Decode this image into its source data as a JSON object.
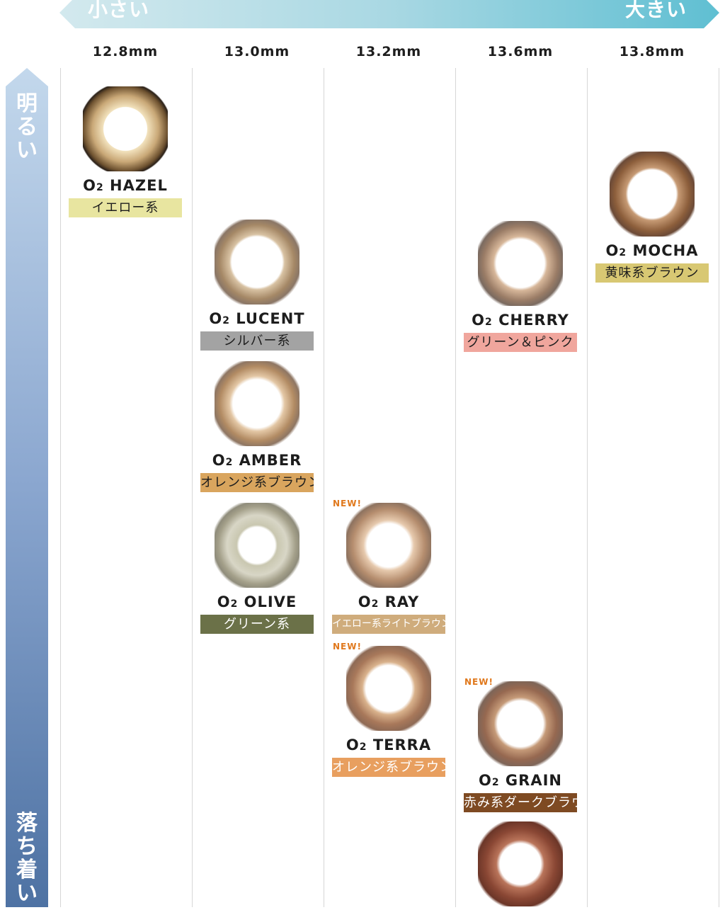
{
  "header": {
    "left_label": "小さい",
    "right_label": "大きい"
  },
  "side": {
    "top_label": "明るい",
    "bottom_label": "落ち着い"
  },
  "columns": [
    "12.8mm",
    "13.0mm",
    "13.2mm",
    "13.6mm",
    "13.8mm"
  ],
  "products": [
    {
      "name": "O",
      "sub": "2",
      "rest": " HAZEL",
      "tag": "イエロー系",
      "tag_color": "#e8e5a0",
      "light": false,
      "new": ""
    },
    {
      "name": "O",
      "sub": "2",
      "rest": " MOCHA",
      "tag": "黄味系ブラウン",
      "tag_color": "#d8c873",
      "light": false,
      "new": ""
    },
    {
      "name": "O",
      "sub": "2",
      "rest": " LUCENT",
      "tag": "シルバー系",
      "tag_color": "#a3a3a3",
      "light": false,
      "new": ""
    },
    {
      "name": "O",
      "sub": "2",
      "rest": " CHERRY",
      "tag": "グリーン＆ピンク",
      "tag_color": "#f0a69d",
      "light": false,
      "new": ""
    },
    {
      "name": "O",
      "sub": "2",
      "rest": " AMBER",
      "tag": "オレンジ系ブラウン",
      "tag_color": "#d9a55e",
      "light": false,
      "new": ""
    },
    {
      "name": "O",
      "sub": "2",
      "rest": " OLIVE",
      "tag": "グリーン系",
      "tag_color": "#6b7148",
      "light": true,
      "new": ""
    },
    {
      "name": "O",
      "sub": "2",
      "rest": " RAY",
      "tag": "イエロー系ライトブラウン",
      "tag_color": "#cfac7c",
      "light": true,
      "new": "NEW!"
    },
    {
      "name": "O",
      "sub": "2",
      "rest": " TERRA",
      "tag": "オレンジ系ブラウン",
      "tag_color": "#e89f5f",
      "light": true,
      "new": "NEW!"
    },
    {
      "name": "O",
      "sub": "2",
      "rest": " GRAIN",
      "tag": "赤み系ダークブラウン",
      "tag_color": "#7e4a22",
      "light": true,
      "new": "NEW!"
    }
  ],
  "extra_lens": {
    "color": "#7a3d2a"
  }
}
